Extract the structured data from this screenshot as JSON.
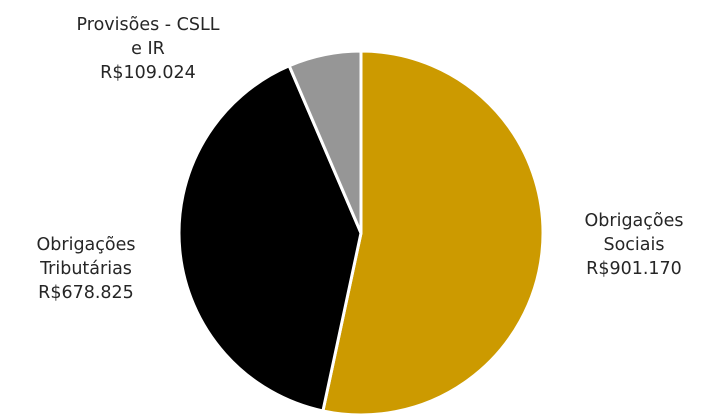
{
  "chart_data": {
    "type": "pie",
    "title": "",
    "slices": [
      {
        "label_lines": [
          "Obrigações",
          "Sociais"
        ],
        "value_text": "R$901.170",
        "value": 901170,
        "color": "#CC9A00"
      },
      {
        "label_lines": [
          "Obrigações",
          "Tributárias"
        ],
        "value_text": "R$678.825",
        "value": 678825,
        "color": "#000000"
      },
      {
        "label_lines": [
          "Provisões - CSLL",
          "e IR"
        ],
        "value_text": "R$109.024",
        "value": 109024,
        "color": "#969696"
      }
    ],
    "start_angle_deg": 0,
    "direction": "clockwise",
    "legend": "none"
  }
}
